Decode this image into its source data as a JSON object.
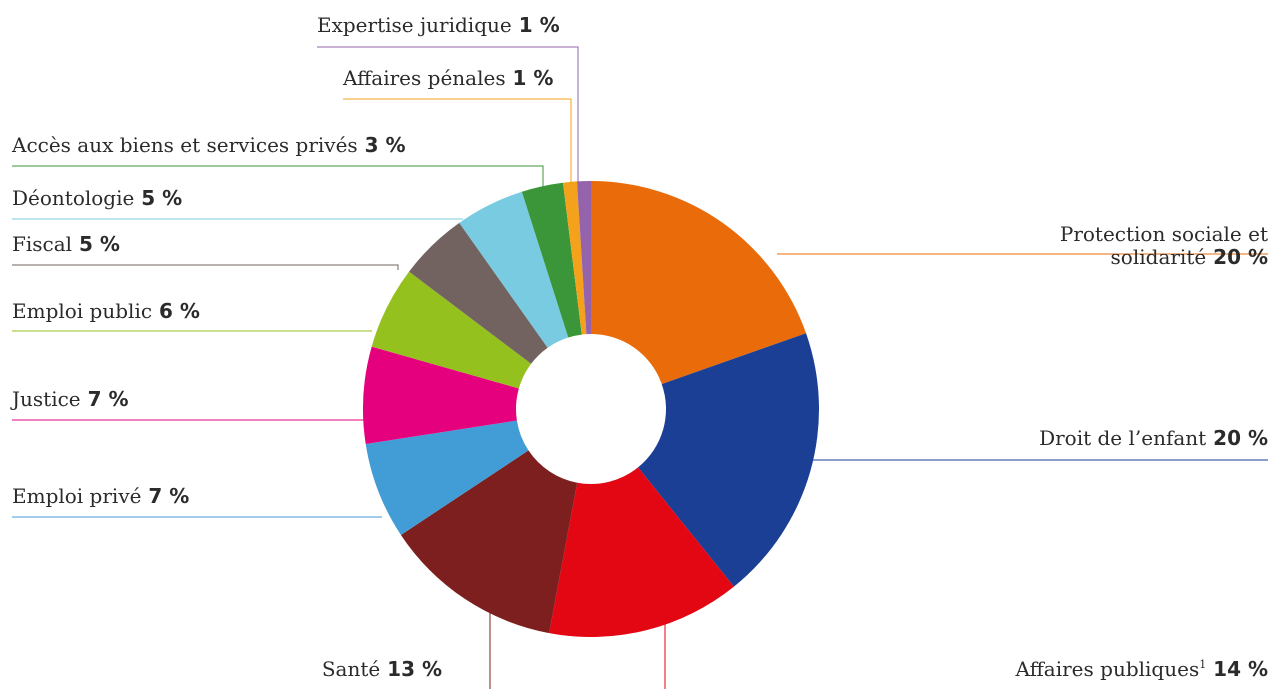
{
  "chart_data": {
    "type": "pie",
    "donut": true,
    "slices": [
      {
        "label": "Protection sociale et solidarité",
        "label_lines": [
          "Protection sociale et",
          "solidarité"
        ],
        "pct_text": "20 %",
        "value": 20,
        "color": "#ea6b0a"
      },
      {
        "label": "Droit de l’enfant",
        "pct_text": "20 %",
        "value": 20,
        "color": "#1a3f95"
      },
      {
        "label": "Affaires publiques",
        "footnote": "1",
        "pct_text": "14 %",
        "value": 14,
        "color": "#e30613"
      },
      {
        "label": "Santé",
        "pct_text": "13 %",
        "value": 13,
        "color": "#7d1f1f"
      },
      {
        "label": "Emploi privé",
        "pct_text": "7 %",
        "value": 7,
        "color": "#429dd6"
      },
      {
        "label": "Justice",
        "pct_text": "7 %",
        "value": 7,
        "color": "#e5007e"
      },
      {
        "label": "Emploi public",
        "pct_text": "6 %",
        "value": 6,
        "color": "#95c11f"
      },
      {
        "label": "Fiscal",
        "pct_text": "5 %",
        "value": 5,
        "color": "#736360"
      },
      {
        "label": "Déontologie",
        "pct_text": "5 %",
        "value": 5,
        "color": "#78cbe0"
      },
      {
        "label": "Accès aux biens et services privés",
        "pct_text": "3 %",
        "value": 3,
        "color": "#3a9639"
      },
      {
        "label": "Affaires pénales",
        "pct_text": "1 %",
        "value": 1,
        "color": "#f4a21b"
      },
      {
        "label": "Expertise juridique",
        "pct_text": "1 %",
        "value": 1,
        "color": "#9463ac"
      }
    ]
  }
}
